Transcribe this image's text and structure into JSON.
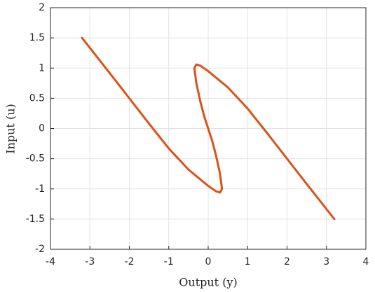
{
  "chart_data": {
    "type": "line",
    "x_label": "Output (y)",
    "y_label": "Input (u)",
    "x": [
      -3.2,
      -2.5,
      -2,
      -1.5,
      -1,
      -0.5,
      0,
      0.2,
      0.3,
      0.35,
      0.3,
      0.2,
      0.1,
      0,
      -0.1,
      -0.2,
      -0.3,
      -0.35,
      -0.3,
      -0.2,
      0,
      0.5,
      1,
      1.5,
      2,
      2.5,
      3.2
    ],
    "values": [
      1.5,
      0.92,
      0.5,
      0.08,
      -0.33,
      -0.68,
      -0.95,
      -1.04,
      -1.06,
      -1.0,
      -0.75,
      -0.45,
      -0.2,
      0,
      0.2,
      0.45,
      0.75,
      1.0,
      1.06,
      1.04,
      0.95,
      0.68,
      0.33,
      -0.08,
      -0.5,
      -0.92,
      -1.5
    ],
    "color": "#d95319",
    "xlim": [
      -4,
      4
    ],
    "xticks": [
      -4,
      -3,
      -2,
      -1,
      0,
      1,
      2,
      3,
      4
    ],
    "ylim": [
      -2,
      2
    ],
    "yticks": [
      -2,
      -1.5,
      -1,
      -0.5,
      0,
      0.5,
      1,
      1.5,
      2
    ],
    "grid": true
  }
}
